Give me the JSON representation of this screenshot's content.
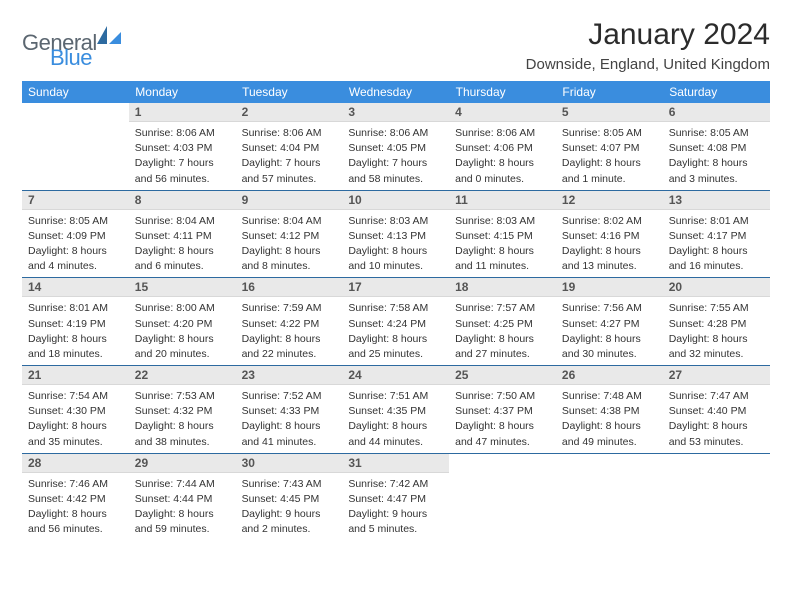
{
  "logo": {
    "text1": "General",
    "text2": "Blue",
    "gray": "#5b6670",
    "blue": "#3a8dde"
  },
  "title": "January 2024",
  "location": "Downside, England, United Kingdom",
  "colors": {
    "header_bg": "#3a8dde",
    "header_text": "#ffffff",
    "daynum_bg": "#e9e9e9",
    "divider": "#2d6aa0",
    "body_text": "#333333"
  },
  "weekdays": [
    "Sunday",
    "Monday",
    "Tuesday",
    "Wednesday",
    "Thursday",
    "Friday",
    "Saturday"
  ],
  "weeks": [
    [
      null,
      {
        "n": "1",
        "sr": "Sunrise: 8:06 AM",
        "ss": "Sunset: 4:03 PM",
        "d1": "Daylight: 7 hours",
        "d2": "and 56 minutes."
      },
      {
        "n": "2",
        "sr": "Sunrise: 8:06 AM",
        "ss": "Sunset: 4:04 PM",
        "d1": "Daylight: 7 hours",
        "d2": "and 57 minutes."
      },
      {
        "n": "3",
        "sr": "Sunrise: 8:06 AM",
        "ss": "Sunset: 4:05 PM",
        "d1": "Daylight: 7 hours",
        "d2": "and 58 minutes."
      },
      {
        "n": "4",
        "sr": "Sunrise: 8:06 AM",
        "ss": "Sunset: 4:06 PM",
        "d1": "Daylight: 8 hours",
        "d2": "and 0 minutes."
      },
      {
        "n": "5",
        "sr": "Sunrise: 8:05 AM",
        "ss": "Sunset: 4:07 PM",
        "d1": "Daylight: 8 hours",
        "d2": "and 1 minute."
      },
      {
        "n": "6",
        "sr": "Sunrise: 8:05 AM",
        "ss": "Sunset: 4:08 PM",
        "d1": "Daylight: 8 hours",
        "d2": "and 3 minutes."
      }
    ],
    [
      {
        "n": "7",
        "sr": "Sunrise: 8:05 AM",
        "ss": "Sunset: 4:09 PM",
        "d1": "Daylight: 8 hours",
        "d2": "and 4 minutes."
      },
      {
        "n": "8",
        "sr": "Sunrise: 8:04 AM",
        "ss": "Sunset: 4:11 PM",
        "d1": "Daylight: 8 hours",
        "d2": "and 6 minutes."
      },
      {
        "n": "9",
        "sr": "Sunrise: 8:04 AM",
        "ss": "Sunset: 4:12 PM",
        "d1": "Daylight: 8 hours",
        "d2": "and 8 minutes."
      },
      {
        "n": "10",
        "sr": "Sunrise: 8:03 AM",
        "ss": "Sunset: 4:13 PM",
        "d1": "Daylight: 8 hours",
        "d2": "and 10 minutes."
      },
      {
        "n": "11",
        "sr": "Sunrise: 8:03 AM",
        "ss": "Sunset: 4:15 PM",
        "d1": "Daylight: 8 hours",
        "d2": "and 11 minutes."
      },
      {
        "n": "12",
        "sr": "Sunrise: 8:02 AM",
        "ss": "Sunset: 4:16 PM",
        "d1": "Daylight: 8 hours",
        "d2": "and 13 minutes."
      },
      {
        "n": "13",
        "sr": "Sunrise: 8:01 AM",
        "ss": "Sunset: 4:17 PM",
        "d1": "Daylight: 8 hours",
        "d2": "and 16 minutes."
      }
    ],
    [
      {
        "n": "14",
        "sr": "Sunrise: 8:01 AM",
        "ss": "Sunset: 4:19 PM",
        "d1": "Daylight: 8 hours",
        "d2": "and 18 minutes."
      },
      {
        "n": "15",
        "sr": "Sunrise: 8:00 AM",
        "ss": "Sunset: 4:20 PM",
        "d1": "Daylight: 8 hours",
        "d2": "and 20 minutes."
      },
      {
        "n": "16",
        "sr": "Sunrise: 7:59 AM",
        "ss": "Sunset: 4:22 PM",
        "d1": "Daylight: 8 hours",
        "d2": "and 22 minutes."
      },
      {
        "n": "17",
        "sr": "Sunrise: 7:58 AM",
        "ss": "Sunset: 4:24 PM",
        "d1": "Daylight: 8 hours",
        "d2": "and 25 minutes."
      },
      {
        "n": "18",
        "sr": "Sunrise: 7:57 AM",
        "ss": "Sunset: 4:25 PM",
        "d1": "Daylight: 8 hours",
        "d2": "and 27 minutes."
      },
      {
        "n": "19",
        "sr": "Sunrise: 7:56 AM",
        "ss": "Sunset: 4:27 PM",
        "d1": "Daylight: 8 hours",
        "d2": "and 30 minutes."
      },
      {
        "n": "20",
        "sr": "Sunrise: 7:55 AM",
        "ss": "Sunset: 4:28 PM",
        "d1": "Daylight: 8 hours",
        "d2": "and 32 minutes."
      }
    ],
    [
      {
        "n": "21",
        "sr": "Sunrise: 7:54 AM",
        "ss": "Sunset: 4:30 PM",
        "d1": "Daylight: 8 hours",
        "d2": "and 35 minutes."
      },
      {
        "n": "22",
        "sr": "Sunrise: 7:53 AM",
        "ss": "Sunset: 4:32 PM",
        "d1": "Daylight: 8 hours",
        "d2": "and 38 minutes."
      },
      {
        "n": "23",
        "sr": "Sunrise: 7:52 AM",
        "ss": "Sunset: 4:33 PM",
        "d1": "Daylight: 8 hours",
        "d2": "and 41 minutes."
      },
      {
        "n": "24",
        "sr": "Sunrise: 7:51 AM",
        "ss": "Sunset: 4:35 PM",
        "d1": "Daylight: 8 hours",
        "d2": "and 44 minutes."
      },
      {
        "n": "25",
        "sr": "Sunrise: 7:50 AM",
        "ss": "Sunset: 4:37 PM",
        "d1": "Daylight: 8 hours",
        "d2": "and 47 minutes."
      },
      {
        "n": "26",
        "sr": "Sunrise: 7:48 AM",
        "ss": "Sunset: 4:38 PM",
        "d1": "Daylight: 8 hours",
        "d2": "and 49 minutes."
      },
      {
        "n": "27",
        "sr": "Sunrise: 7:47 AM",
        "ss": "Sunset: 4:40 PM",
        "d1": "Daylight: 8 hours",
        "d2": "and 53 minutes."
      }
    ],
    [
      {
        "n": "28",
        "sr": "Sunrise: 7:46 AM",
        "ss": "Sunset: 4:42 PM",
        "d1": "Daylight: 8 hours",
        "d2": "and 56 minutes."
      },
      {
        "n": "29",
        "sr": "Sunrise: 7:44 AM",
        "ss": "Sunset: 4:44 PM",
        "d1": "Daylight: 8 hours",
        "d2": "and 59 minutes."
      },
      {
        "n": "30",
        "sr": "Sunrise: 7:43 AM",
        "ss": "Sunset: 4:45 PM",
        "d1": "Daylight: 9 hours",
        "d2": "and 2 minutes."
      },
      {
        "n": "31",
        "sr": "Sunrise: 7:42 AM",
        "ss": "Sunset: 4:47 PM",
        "d1": "Daylight: 9 hours",
        "d2": "and 5 minutes."
      },
      null,
      null,
      null
    ]
  ]
}
